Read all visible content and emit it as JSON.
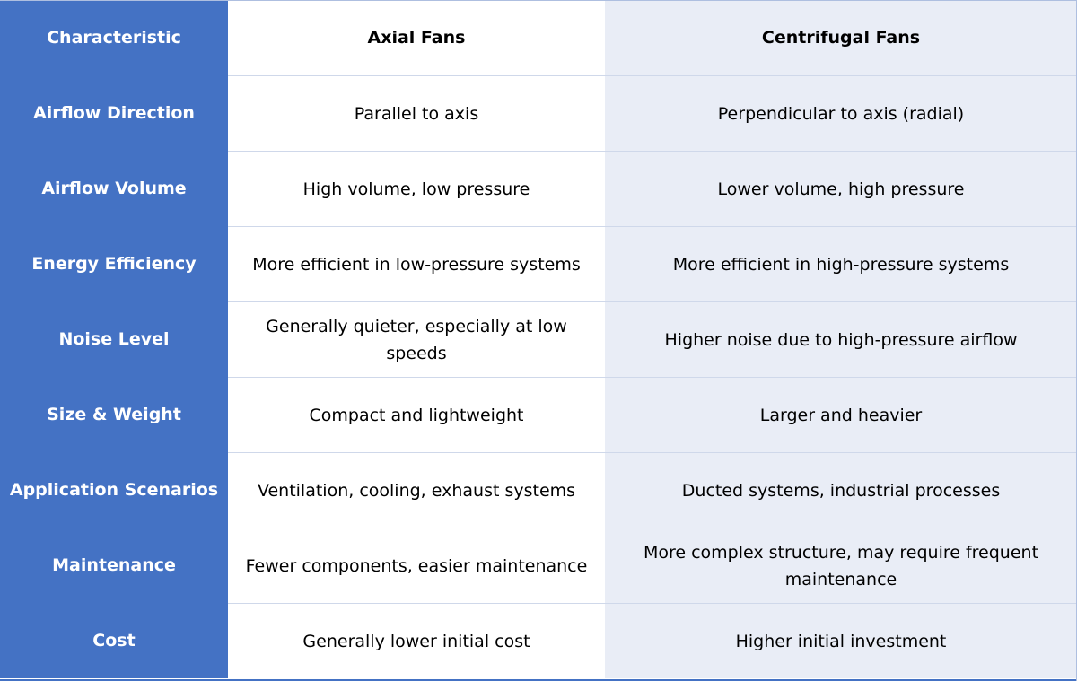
{
  "header": {
    "characteristic": "Characteristic",
    "axial": "Axial Fans",
    "centrifugal": "Centrifugal Fans"
  },
  "rows": [
    {
      "characteristic": "Airflow Direction",
      "axial": "Parallel to axis",
      "centrifugal": "Perpendicular to axis (radial)"
    },
    {
      "characteristic": "Airflow Volume",
      "axial": "High volume, low pressure",
      "centrifugal": "Lower volume, high pressure"
    },
    {
      "characteristic": "Energy Efficiency",
      "axial": "More efficient in low-pressure systems",
      "centrifugal": "More efficient in high-pressure systems"
    },
    {
      "characteristic": "Noise Level",
      "axial": "Generally quieter, especially at low speeds",
      "centrifugal": "Higher noise due to high-pressure airflow"
    },
    {
      "characteristic": "Size & Weight",
      "axial": "Compact and lightweight",
      "centrifugal": "Larger and heavier"
    },
    {
      "characteristic": "Application Scenarios",
      "axial": "Ventilation, cooling, exhaust systems",
      "centrifugal": "Ducted systems, industrial processes"
    },
    {
      "characteristic": "Maintenance",
      "axial": "Fewer components, easier maintenance",
      "centrifugal": "More complex structure, may require frequent maintenance"
    },
    {
      "characteristic": "Cost",
      "axial": "Generally lower initial cost",
      "centrifugal": "Higher initial investment"
    }
  ],
  "colors": {
    "label_column": "#4472c4",
    "axial_column": "#ffffff",
    "centrifugal_column": "#e9edf6"
  }
}
